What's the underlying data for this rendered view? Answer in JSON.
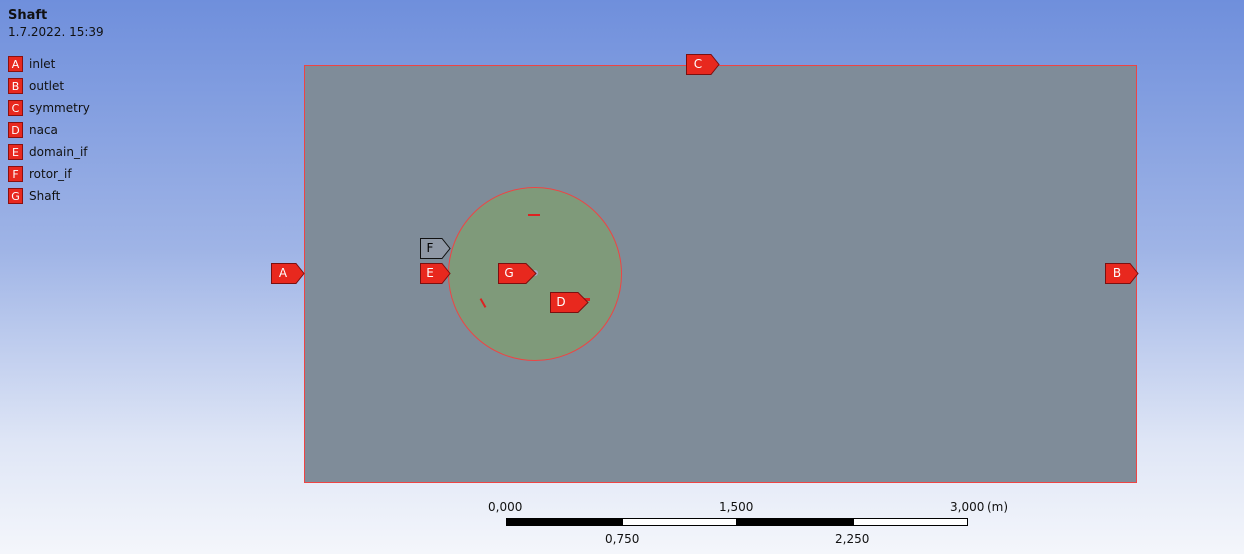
{
  "header": {
    "title": "Shaft",
    "datetime": "1.7.2022. 15:39"
  },
  "legend": [
    {
      "letter": "A",
      "label": "inlet"
    },
    {
      "letter": "B",
      "label": "outlet"
    },
    {
      "letter": "C",
      "label": "symmetry"
    },
    {
      "letter": "D",
      "label": "naca"
    },
    {
      "letter": "E",
      "label": "domain_if"
    },
    {
      "letter": "F",
      "label": "rotor_if"
    },
    {
      "letter": "G",
      "label": "Shaft"
    }
  ],
  "tags": {
    "A": "A",
    "B": "B",
    "C": "C",
    "D": "D",
    "E": "E",
    "F": "F",
    "G": "G"
  },
  "scale": {
    "top": [
      "0,000",
      "1,500",
      "3,000"
    ],
    "bottom": [
      "0,750",
      "2,250"
    ],
    "unit": "(m)"
  },
  "colors": {
    "tag_red": "#e8281e",
    "domain_fill": "#7f8c99",
    "rotor_fill": "#7f9a7a",
    "outline": "#ee4444"
  }
}
